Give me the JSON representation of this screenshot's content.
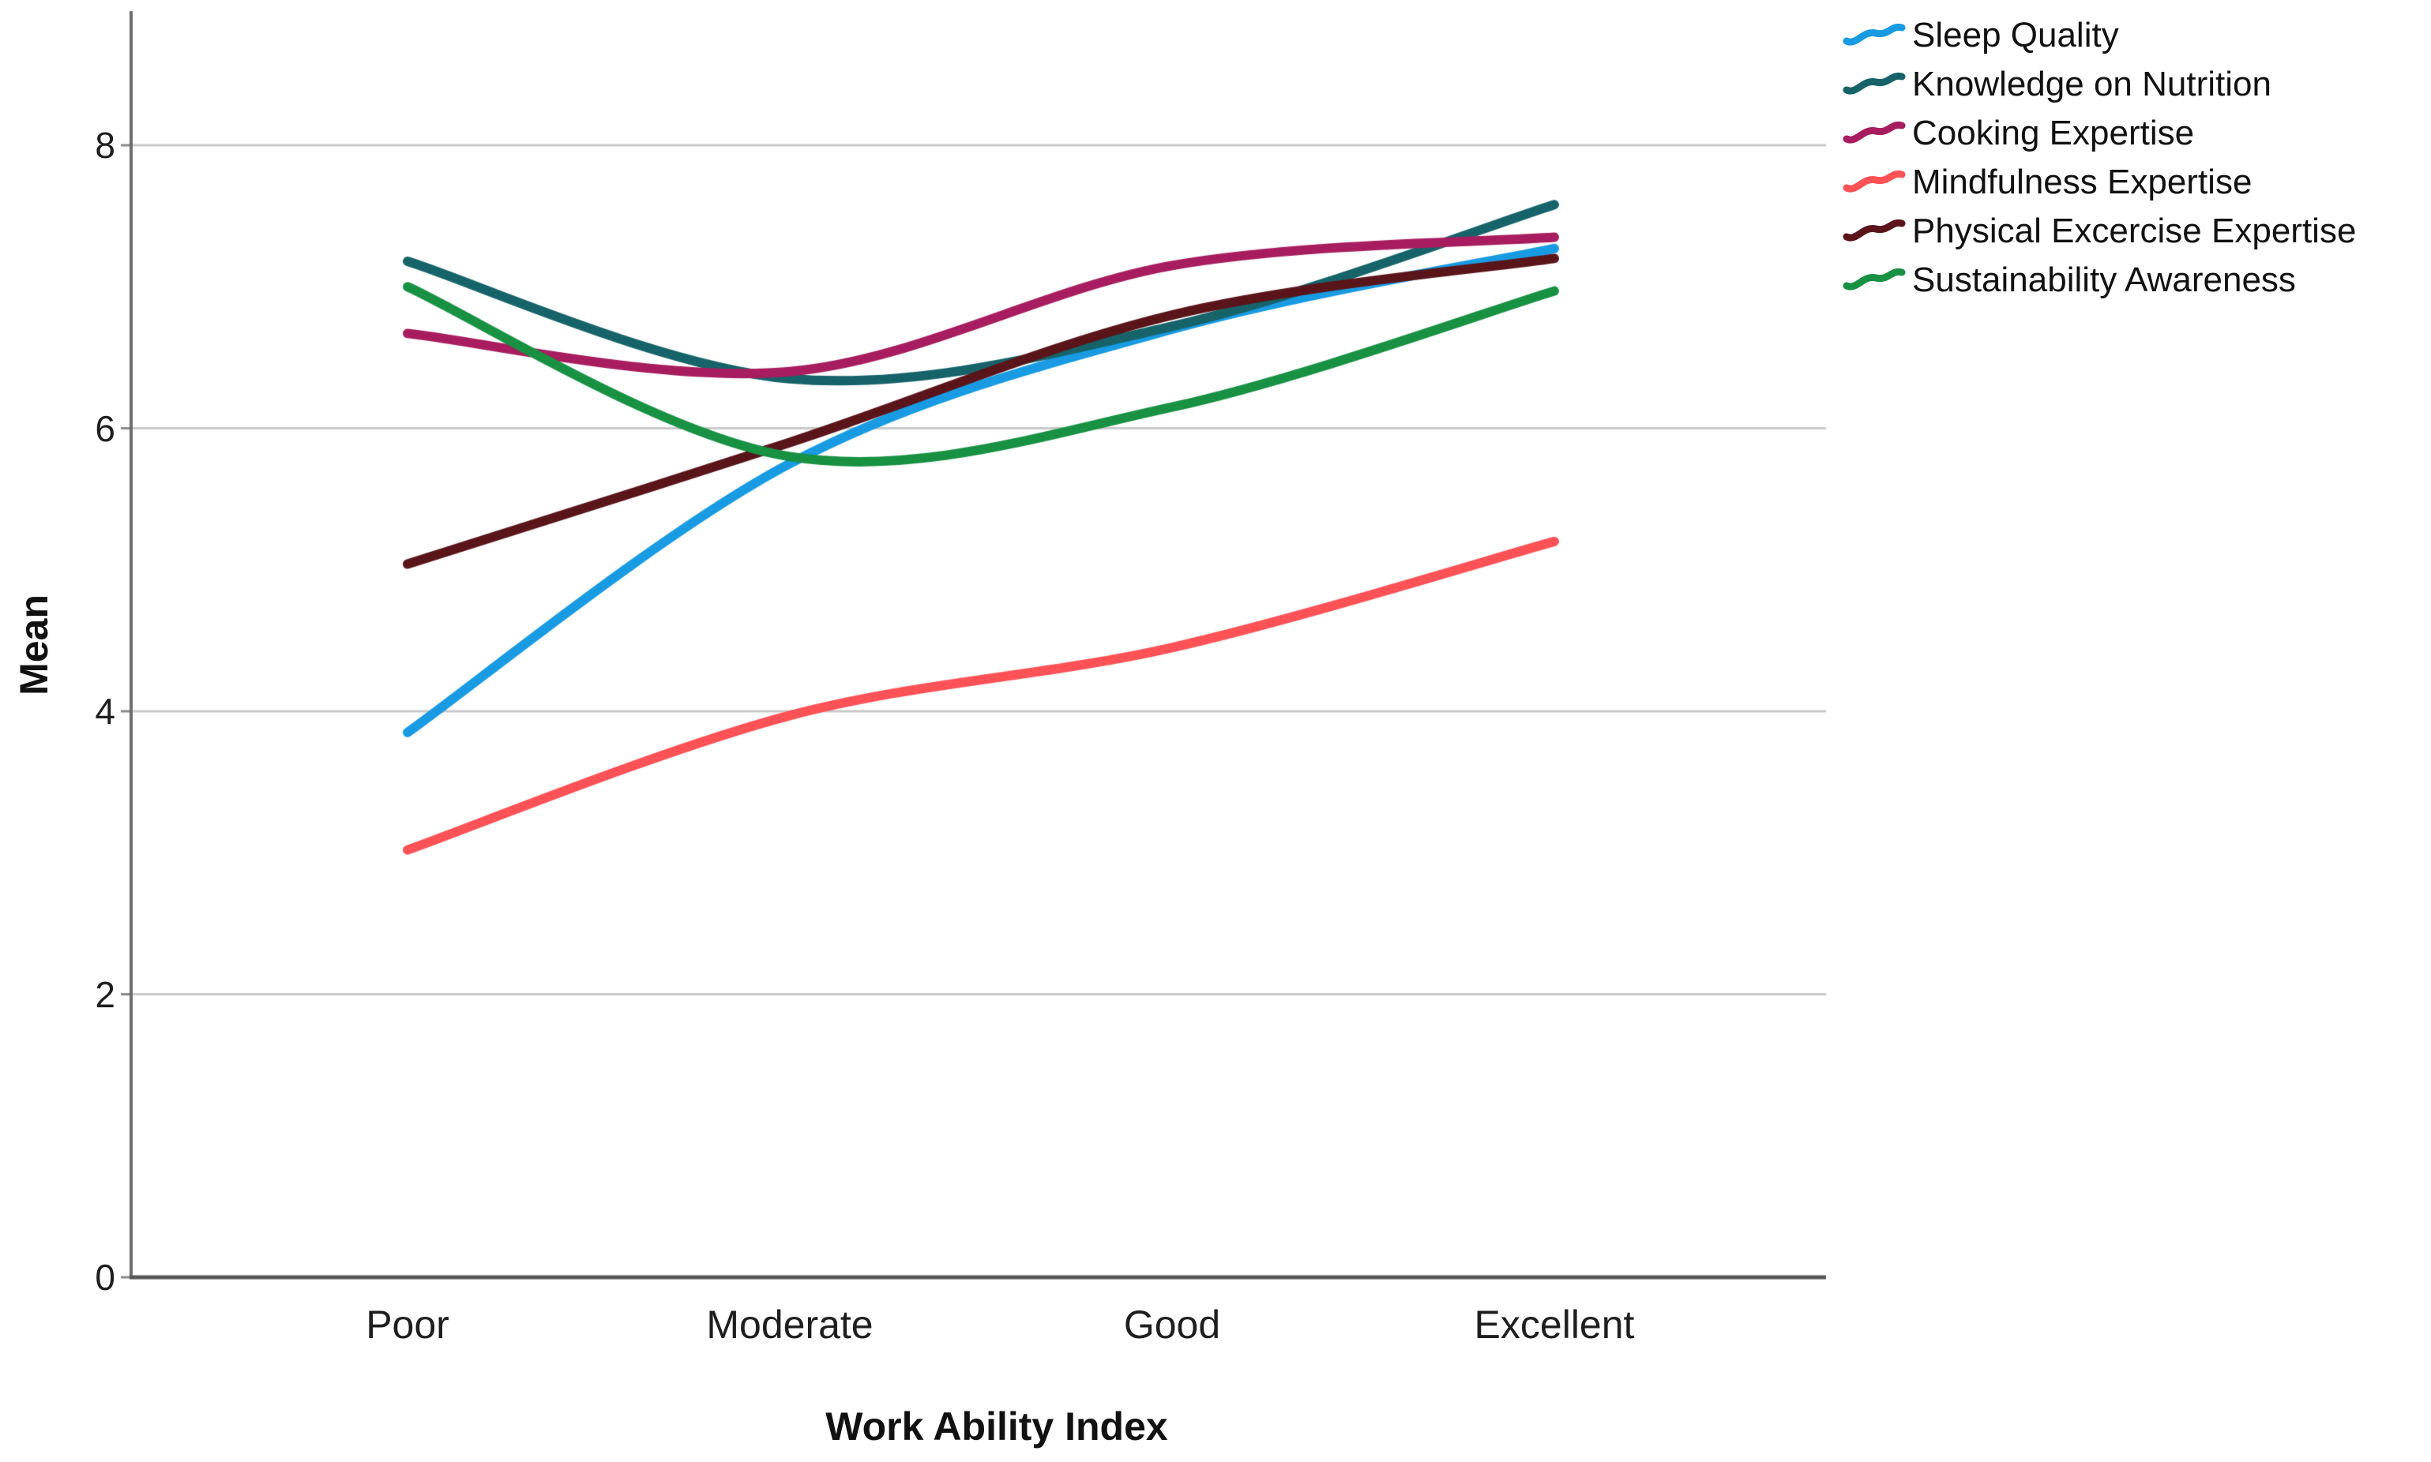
{
  "chart_data": {
    "type": "line",
    "title": "",
    "xlabel": "Work Ability Index",
    "ylabel": "Mean",
    "categories": [
      "Poor",
      "Moderate",
      "Good",
      "Excellent"
    ],
    "yticks": [
      "0",
      "2",
      "4",
      "6",
      "8"
    ],
    "ylim": [
      0,
      8
    ],
    "grid": "horizontal-only",
    "legend_position": "top-right",
    "interpolation": "spline",
    "colors": {
      "gridline": "#c9c9c9",
      "y_axis": "#6b6b6b",
      "x_axis": "#565656",
      "tick": "#8a8a8a",
      "text": "#1e1e1e"
    },
    "series": [
      {
        "name": "Sleep Quality",
        "color": "#189be2",
        "values": [
          3.85,
          5.75,
          6.7,
          7.27
        ]
      },
      {
        "name": "Knowledge on Nutrition",
        "color": "#16646a",
        "values": [
          7.18,
          6.35,
          6.72,
          7.58
        ]
      },
      {
        "name": "Cooking Expertise",
        "color": "#a81d5f",
        "values": [
          6.67,
          6.4,
          7.15,
          7.35
        ]
      },
      {
        "name": "Mindfulness Expertise",
        "color": "#ff5257",
        "values": [
          3.02,
          3.97,
          4.45,
          5.2
        ]
      },
      {
        "name": "Physical Excercise Expertise",
        "color": "#5a151b",
        "values": [
          5.04,
          5.9,
          6.8,
          7.2
        ]
      },
      {
        "name": "Sustainability Awareness",
        "color": "#189143",
        "values": [
          7.0,
          5.8,
          6.15,
          6.97
        ]
      }
    ]
  }
}
